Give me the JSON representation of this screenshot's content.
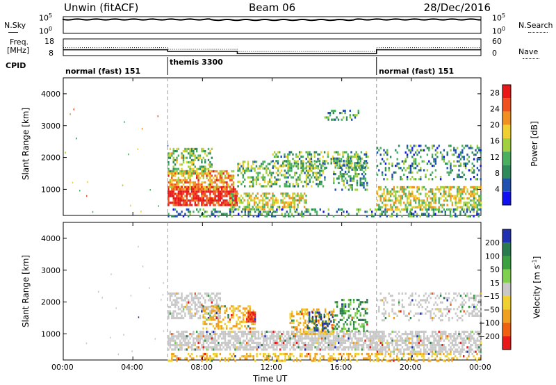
{
  "header": {
    "station": "Unwin (fitACF)",
    "beam": "Beam 06",
    "date": "28/Dec/2016"
  },
  "sky_panel": {
    "left_label": "N.Sky",
    "right_label": "N.Search",
    "ticks_left": [
      "10^5",
      "10^0"
    ],
    "ticks_right": [
      "10^5",
      "10^0"
    ]
  },
  "freq_panel": {
    "left_label_1": "Freq.",
    "left_label_2": "[MHz]",
    "right_label": "Nave",
    "ticks_left": [
      "18",
      "8"
    ],
    "ticks_right": [
      "60",
      "0"
    ],
    "freq_segments": [
      {
        "start": 0,
        "end": 6,
        "value": 11.5
      },
      {
        "start": 6,
        "end": 10,
        "value": 10.5
      },
      {
        "start": 10,
        "end": 18,
        "value": 9.2
      },
      {
        "start": 18,
        "end": 24,
        "value": 11.5
      }
    ]
  },
  "cpid": {
    "label": "CPID",
    "segments": [
      {
        "text": "normal (fast) 151",
        "start": 0,
        "end": 6
      },
      {
        "text": "themis 3300",
        "start": 6,
        "end": 18
      },
      {
        "text": "normal (fast) 151",
        "start": 18,
        "end": 24
      }
    ]
  },
  "time_axis": {
    "xlabel": "Time UT",
    "ticks": [
      "00:00",
      "04:00",
      "08:00",
      "12:00",
      "16:00",
      "20:00",
      "00:00"
    ],
    "tick_hours": [
      0,
      4,
      8,
      12,
      16,
      20,
      24
    ]
  },
  "chart_data": [
    {
      "type": "heatmap",
      "name": "power",
      "ylabel": "Slant Range [km]",
      "ylim": [
        180,
        4500
      ],
      "xlim": [
        0,
        24
      ],
      "yticks": [
        1000,
        2000,
        3000,
        4000
      ],
      "colorbar": {
        "label": "Power [dB]",
        "ticks": [
          4,
          8,
          12,
          16,
          20,
          24,
          28
        ],
        "range": [
          0,
          30
        ],
        "colors": [
          "#1010f0",
          "#2050b0",
          "#2f8a5a",
          "#4ab060",
          "#a0d040",
          "#f0d030",
          "#f09020",
          "#f05020",
          "#e81818"
        ]
      },
      "regions": [
        {
          "t0": 6.0,
          "t1": 10.0,
          "r0": 500,
          "r1": 1100,
          "level": 0.95,
          "density": 0.8
        },
        {
          "t0": 6.0,
          "t1": 9.8,
          "r0": 1000,
          "r1": 1600,
          "level": 0.7,
          "density": 0.6
        },
        {
          "t0": 6.0,
          "t1": 8.5,
          "r0": 1500,
          "r1": 2300,
          "level": 0.45,
          "density": 0.45
        },
        {
          "t0": 9.5,
          "t1": 14.0,
          "r0": 400,
          "r1": 900,
          "level": 0.55,
          "density": 0.55
        },
        {
          "t0": 10.0,
          "t1": 15.0,
          "r0": 1100,
          "r1": 1900,
          "level": 0.4,
          "density": 0.45
        },
        {
          "t0": 12.0,
          "t1": 17.5,
          "r0": 1700,
          "r1": 2200,
          "level": 0.4,
          "density": 0.4
        },
        {
          "t0": 15.5,
          "t1": 17.5,
          "r0": 1000,
          "r1": 2000,
          "level": 0.35,
          "density": 0.4
        },
        {
          "t0": 15.0,
          "t1": 17.0,
          "r0": 3200,
          "r1": 3500,
          "level": 0.3,
          "density": 0.25
        },
        {
          "t0": 18.0,
          "t1": 24.0,
          "r0": 400,
          "r1": 1100,
          "level": 0.55,
          "density": 0.55
        },
        {
          "t0": 18.0,
          "t1": 24.0,
          "r0": 1300,
          "r1": 2400,
          "level": 0.3,
          "density": 0.25
        },
        {
          "t0": 6.0,
          "t1": 24.0,
          "r0": 180,
          "r1": 400,
          "level": 0.3,
          "density": 0.35
        }
      ]
    },
    {
      "type": "heatmap",
      "name": "velocity",
      "ylabel": "Slant Range [km]",
      "ylim": [
        180,
        4500
      ],
      "xlim": [
        0,
        24
      ],
      "yticks": [
        1000,
        2000,
        3000,
        4000
      ],
      "colorbar": {
        "label": "Velocity [m s^-1]",
        "ticks": [
          "200",
          "100",
          "50",
          "15",
          "−15",
          "−50",
          "−100",
          "−200"
        ],
        "colors": [
          "#2030b0",
          "#2a7a50",
          "#3aa040",
          "#80d050",
          "#c8c8c8",
          "#f0d030",
          "#f0a020",
          "#f06010",
          "#e81818"
        ]
      },
      "regions": [
        {
          "t0": 6.0,
          "t1": 18.0,
          "r0": 500,
          "r1": 1100,
          "vel": "gray",
          "density": 0.7
        },
        {
          "t0": 6.0,
          "t1": 9.0,
          "r0": 1500,
          "r1": 2300,
          "vel": "gray",
          "density": 0.5
        },
        {
          "t0": 8.0,
          "t1": 11.0,
          "r0": 1200,
          "r1": 1900,
          "vel": "orange",
          "density": 0.45
        },
        {
          "t0": 10.5,
          "t1": 11.0,
          "r0": 1400,
          "r1": 1700,
          "vel": "red",
          "density": 0.8
        },
        {
          "t0": 13.0,
          "t1": 15.5,
          "r0": 1000,
          "r1": 1800,
          "vel": "orange",
          "density": 0.45
        },
        {
          "t0": 14.0,
          "t1": 15.5,
          "r0": 1100,
          "r1": 1700,
          "vel": "blue",
          "density": 0.4
        },
        {
          "t0": 15.5,
          "t1": 17.5,
          "r0": 1100,
          "r1": 2100,
          "vel": "green",
          "density": 0.4
        },
        {
          "t0": 18.0,
          "t1": 24.0,
          "r0": 400,
          "r1": 1100,
          "vel": "gray",
          "density": 0.6
        },
        {
          "t0": 18.0,
          "t1": 24.0,
          "r0": 1400,
          "r1": 2300,
          "vel": "gray",
          "density": 0.25
        },
        {
          "t0": 6.0,
          "t1": 24.0,
          "r0": 180,
          "r1": 400,
          "vel": "orange",
          "density": 0.35
        }
      ]
    }
  ]
}
